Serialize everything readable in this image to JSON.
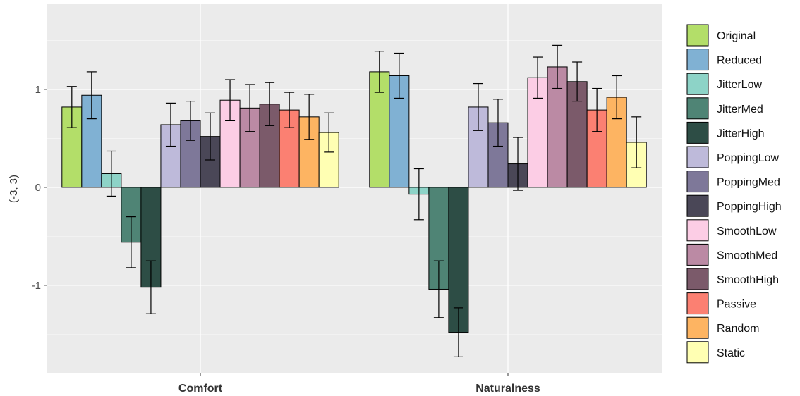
{
  "chart_data": {
    "type": "bar",
    "categories": [
      "Comfort",
      "Naturalness"
    ],
    "ylabel": "(-3, 3)",
    "ylim": [
      -1.9,
      1.87
    ],
    "yticks": [
      -1,
      0,
      1
    ],
    "grid": true,
    "legend_position": "right",
    "series": [
      {
        "name": "Original",
        "color": "#b3de69",
        "values": [
          0.82,
          1.18
        ],
        "errors": [
          0.21,
          0.21
        ]
      },
      {
        "name": "Reduced",
        "color": "#80b1d3",
        "values": [
          0.94,
          1.14
        ],
        "errors": [
          0.24,
          0.23
        ]
      },
      {
        "name": "JitterLow",
        "color": "#8dd3c7",
        "values": [
          0.14,
          -0.07
        ],
        "errors": [
          0.23,
          0.26
        ]
      },
      {
        "name": "JitterMed",
        "color": "#4f8475",
        "values": [
          -0.56,
          -1.04
        ],
        "errors": [
          0.26,
          0.29
        ]
      },
      {
        "name": "JitterHigh",
        "color": "#2d4d45",
        "values": [
          -1.02,
          -1.48
        ],
        "errors": [
          0.27,
          0.25
        ]
      },
      {
        "name": "PoppingLow",
        "color": "#bebada",
        "values": [
          0.64,
          0.82
        ],
        "errors": [
          0.22,
          0.24
        ]
      },
      {
        "name": "PoppingMed",
        "color": "#7e7899",
        "values": [
          0.68,
          0.66
        ],
        "errors": [
          0.2,
          0.24
        ]
      },
      {
        "name": "PoppingHigh",
        "color": "#4a4757",
        "values": [
          0.52,
          0.24
        ],
        "errors": [
          0.24,
          0.27
        ]
      },
      {
        "name": "SmoothLow",
        "color": "#fccde5",
        "values": [
          0.89,
          1.12
        ],
        "errors": [
          0.21,
          0.21
        ]
      },
      {
        "name": "SmoothMed",
        "color": "#bb8aa4",
        "values": [
          0.81,
          1.23
        ],
        "errors": [
          0.24,
          0.22
        ]
      },
      {
        "name": "SmoothHigh",
        "color": "#7b5a6a",
        "values": [
          0.85,
          1.08
        ],
        "errors": [
          0.22,
          0.2
        ]
      },
      {
        "name": "Passive",
        "color": "#fb8072",
        "values": [
          0.79,
          0.79
        ],
        "errors": [
          0.18,
          0.22
        ]
      },
      {
        "name": "Random",
        "color": "#fdb462",
        "values": [
          0.72,
          0.92
        ],
        "errors": [
          0.23,
          0.22
        ]
      },
      {
        "name": "Static",
        "color": "#ffffb3",
        "values": [
          0.56,
          0.46
        ],
        "errors": [
          0.2,
          0.26
        ]
      }
    ]
  }
}
